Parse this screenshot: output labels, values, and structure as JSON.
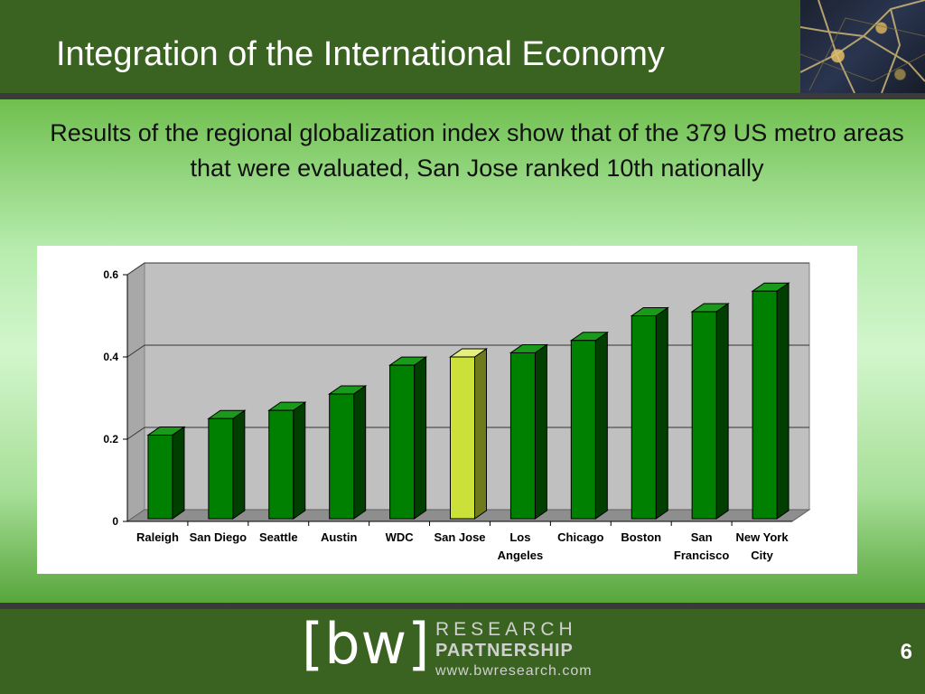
{
  "slide": {
    "title": "Integration of the International Economy",
    "subtitle": "Results of the regional globalization index show that of the 379 US metro areas that were evaluated, San Jose ranked 10th nationally",
    "page_number": "6"
  },
  "logo": {
    "mark": "[bw]",
    "line1": "RESEARCH",
    "line2": "PARTNERSHIP",
    "line3": "www.bwresearch.com"
  },
  "colors": {
    "bar": "#008000",
    "bar_highlight": "#cce03a"
  },
  "chart_data": {
    "type": "bar",
    "categories": [
      [
        "Raleigh"
      ],
      [
        "San Diego"
      ],
      [
        "Seattle"
      ],
      [
        "Austin"
      ],
      [
        "WDC"
      ],
      [
        "San Jose"
      ],
      [
        "Los",
        "Angeles"
      ],
      [
        "Chicago"
      ],
      [
        "Boston"
      ],
      [
        "San",
        "Francisco"
      ],
      [
        "New York",
        "City"
      ]
    ],
    "values": [
      0.21,
      0.25,
      0.27,
      0.31,
      0.38,
      0.4,
      0.41,
      0.44,
      0.5,
      0.51,
      0.56
    ],
    "highlight_category": "San Jose",
    "yticks": [
      "0",
      "0.2",
      "0.4",
      "0.6"
    ],
    "ylim": [
      0,
      0.6
    ],
    "grid": true,
    "three_d": true
  }
}
